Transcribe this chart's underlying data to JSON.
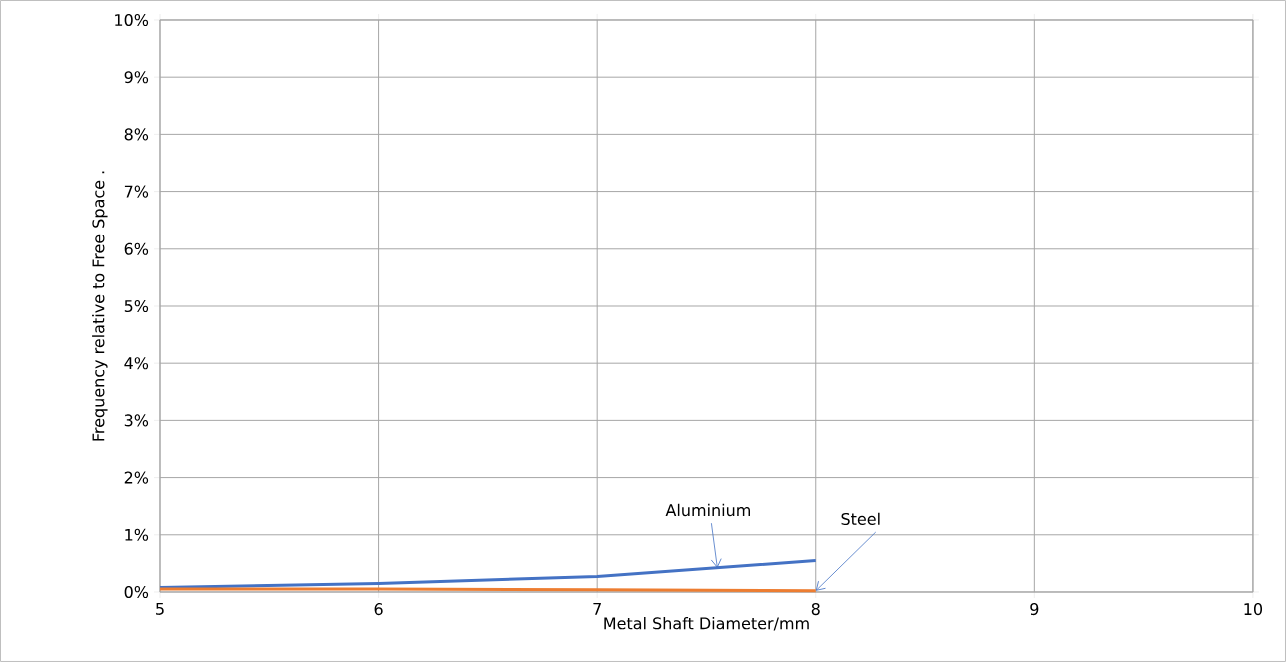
{
  "chart_data": {
    "type": "line",
    "xlabel": "Metal Shaft Diameter/mm",
    "ylabel": "Frequency relative to Free Space .",
    "x": [
      5,
      6,
      7,
      8
    ],
    "series": [
      {
        "color": "#4472c4",
        "values": [
          0.08,
          0.15,
          0.27,
          0.55
        ]
      },
      {
        "color": "#ed7d31",
        "values": [
          0.05,
          0.05,
          0.04,
          0.02
        ]
      }
    ],
    "xlim": [
      5,
      10
    ],
    "xticks": [
      5,
      6,
      7,
      8,
      9,
      10
    ],
    "ylim": [
      0,
      10
    ],
    "yticks": [
      {
        "value": 0,
        "label": "0%"
      },
      {
        "value": 1,
        "label": "1%"
      },
      {
        "value": 2,
        "label": "2%"
      },
      {
        "value": 3,
        "label": "3%"
      },
      {
        "value": 4,
        "label": "4%"
      },
      {
        "value": 5,
        "label": "5%"
      },
      {
        "value": 6,
        "label": "6%"
      },
      {
        "value": 7,
        "label": "7%"
      },
      {
        "value": 8,
        "label": "8%"
      },
      {
        "value": 9,
        "label": "9%"
      },
      {
        "value": 10,
        "label": "10%"
      }
    ],
    "grid": true,
    "legend": false,
    "marker": "none",
    "line_style": "solid",
    "annotations": [
      {
        "text": "Aluminium",
        "x": 7.55,
        "y": 0.42
      },
      {
        "text": "Steel",
        "x": 8,
        "y": 0.02
      }
    ]
  }
}
